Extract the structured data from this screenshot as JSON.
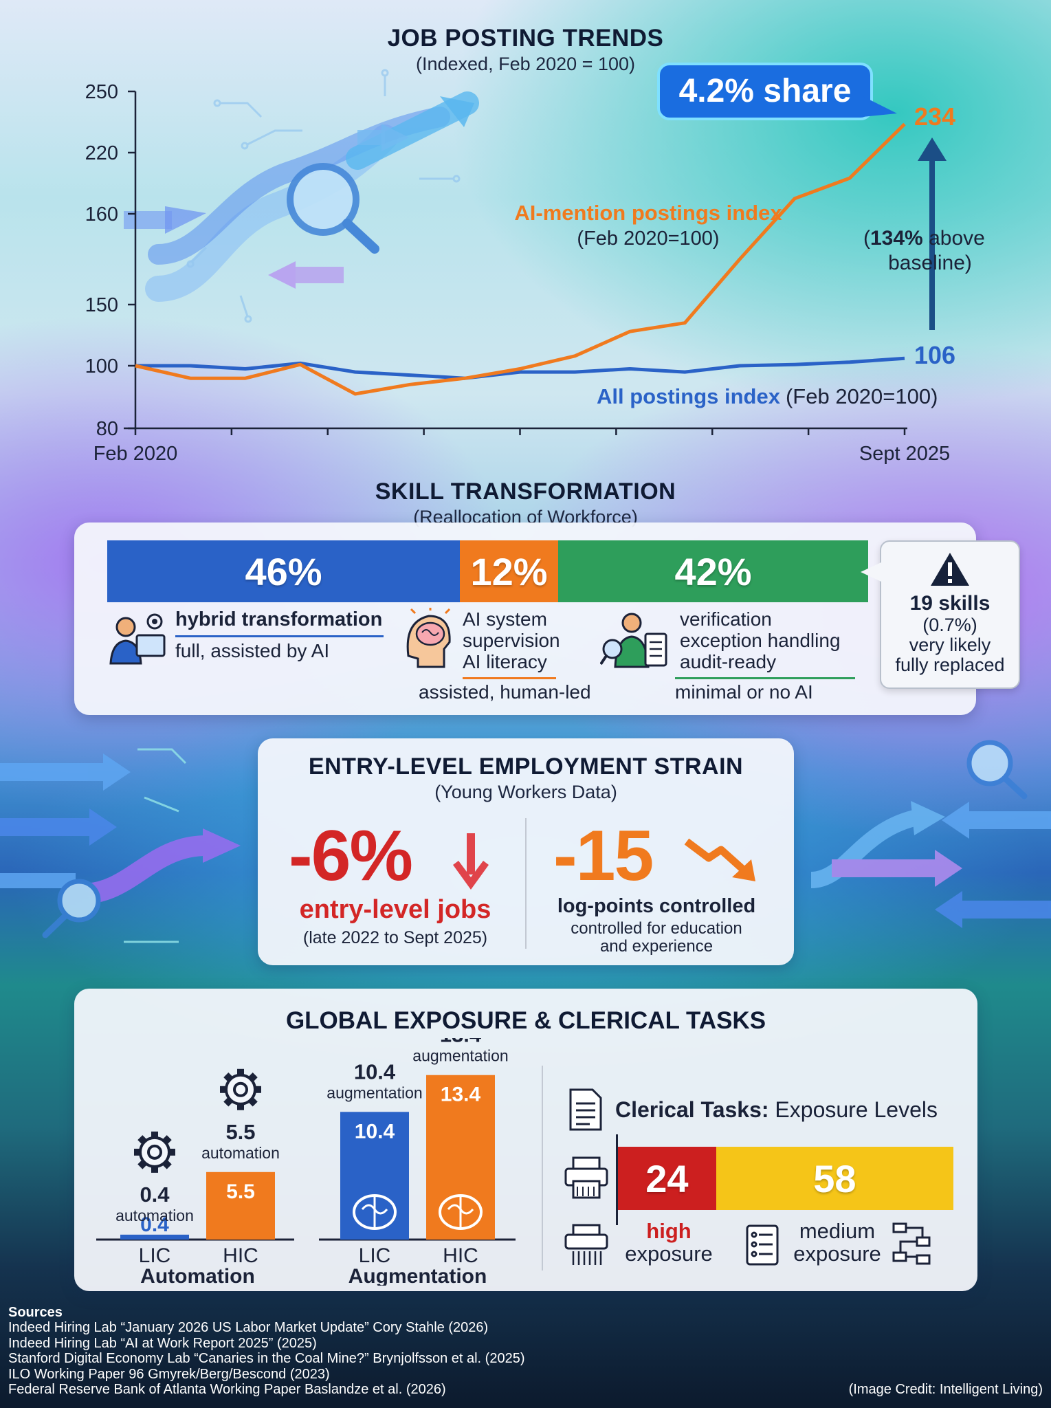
{
  "chart_data": [
    {
      "type": "line",
      "title": "JOB POSTING TRENDS",
      "subtitle": "(Indexed, Feb 2020 = 100)",
      "y_ticks": [
        250,
        220,
        160,
        150,
        100,
        80
      ],
      "x_start_label": "Feb 2020",
      "x_end_label": "Sept 2025",
      "series": [
        {
          "name": "AI-mention postings index",
          "name_suffix": "(Feb 2020=100)",
          "color": "#f07a1e",
          "values": [
            100,
            96,
            96,
            101,
            91,
            94,
            96,
            99,
            108,
            128,
            135,
            155,
            175,
            195,
            234
          ]
        },
        {
          "name": "All postings index",
          "name_suffix": "(Feb 2020=100)",
          "color": "#2a62c7",
          "values": [
            100,
            100,
            99,
            102,
            98,
            97,
            96,
            98,
            98,
            99,
            98,
            100,
            101,
            103,
            106
          ]
        }
      ],
      "end_label_ai": "234",
      "end_label_all": "106",
      "callout": "4.2% share",
      "annotation_bold": "134%",
      "annotation_rest": " above",
      "annotation_line2": "baseline)",
      "annotation_open": "("
    },
    {
      "type": "bar",
      "title": "GLOBAL EXPOSURE & CLERICAL TASKS",
      "groups": [
        {
          "name": "Automation",
          "categories": [
            "LIC",
            "HIC"
          ],
          "values": [
            0.4,
            5.5
          ],
          "value_labels": [
            "0.4",
            "5.5"
          ],
          "caption": "automation"
        },
        {
          "name": "Augmentation",
          "categories": [
            "LIC",
            "HIC"
          ],
          "values": [
            10.4,
            13.4
          ],
          "value_labels": [
            "10.4",
            "13.4"
          ],
          "caption": "augmentation"
        }
      ],
      "colors": {
        "LIC": "#2a62c7",
        "HIC": "#f07a1e"
      }
    }
  ],
  "skills": {
    "title": "SKILL TRANSFORMATION",
    "subtitle": "(Reallocation of Workforce)",
    "segments": [
      {
        "pct": "46%",
        "value": 46,
        "color": "#2a62c7"
      },
      {
        "pct": "12%",
        "value": 12,
        "color": "#f07a1e"
      },
      {
        "pct": "42%",
        "value": 42,
        "color": "#2e9e5b"
      }
    ],
    "hybrid_title": "hybrid transformation",
    "hybrid_desc": "full, assisted by AI",
    "ai_lines": [
      "AI system",
      "supervision",
      "AI literacy"
    ],
    "ai_desc": "assisted, human-led",
    "ver_lines": [
      "verification",
      "exception handling",
      "audit-ready"
    ],
    "ver_desc": "minimal or no AI",
    "callout_bold": "19 skills",
    "callout_lines": [
      "(0.7%)",
      "very likely",
      "fully replaced"
    ]
  },
  "entry": {
    "title": "ENTRY-LEVEL EMPLOYMENT STRAIN",
    "subtitle": "(Young Workers Data)",
    "left_big": "-6%",
    "left_label": "entry-level jobs",
    "left_sub": "(late 2022 to Sept 2025)",
    "right_big": "-15",
    "right_label": "log-points controlled",
    "right_sub1": "controlled for education",
    "right_sub2": "and experience"
  },
  "clerical": {
    "title_bold": "Clerical Tasks:",
    "title_rest": " Exposure Levels",
    "high_value": "24",
    "medium_value": "58",
    "high_w": 24,
    "medium_w": 58,
    "high_label1": "high",
    "high_label2": "exposure",
    "medium_label1": "medium",
    "medium_label2": "exposure"
  },
  "sources": {
    "heading": "Sources",
    "lines": [
      "Indeed Hiring Lab “January 2026 US Labor Market Update” Cory Stahle (2026)",
      "Indeed Hiring Lab “AI at Work Report 2025” (2025)",
      "Stanford Digital Economy Lab “Canaries in the Coal Mine?” Brynjolfsson et al. (2025)",
      "ILO Working Paper 96 Gmyrek/Berg/Bescond (2023)",
      "Federal Reserve Bank of Atlanta Working Paper Baslandze et al. (2026)"
    ],
    "credit": "(Image Credit: Intelligent Living)"
  }
}
